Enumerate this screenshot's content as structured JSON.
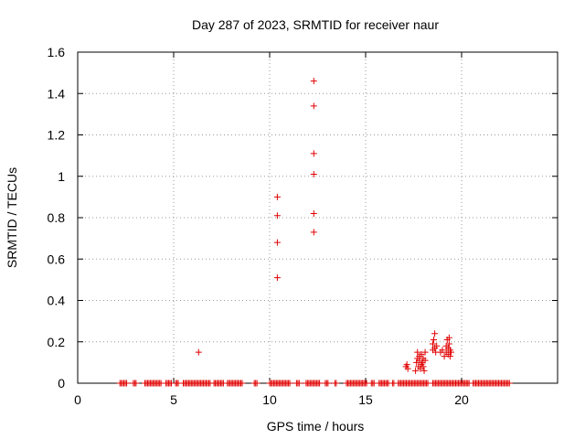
{
  "chart_data": {
    "type": "scatter",
    "title": "Day 287 of 2023, SRMTID for receiver naur",
    "xlabel": "GPS time / hours",
    "ylabel": "SRMTID / TECUs",
    "xlim": [
      0,
      25
    ],
    "ylim": [
      0,
      1.6
    ],
    "xticks": [
      0,
      5,
      10,
      15,
      20
    ],
    "yticks": [
      0,
      0.2,
      0.4,
      0.6,
      0.8,
      1,
      1.2,
      1.4,
      1.6
    ],
    "xtick_labels": [
      "0",
      "5",
      "10",
      "15",
      "20"
    ],
    "ytick_labels": [
      "0",
      "0.2",
      "0.4",
      "0.6",
      "0.8",
      "1",
      "1.2",
      "1.4",
      "1.6"
    ],
    "grid": true,
    "marker": "+",
    "color": "#e00000",
    "series": [
      {
        "name": "SRMTID",
        "points": [
          [
            6.3,
            0.15
          ],
          [
            10.4,
            0.51
          ],
          [
            10.4,
            0.68
          ],
          [
            10.4,
            0.81
          ],
          [
            10.4,
            0.9
          ],
          [
            12.3,
            0.73
          ],
          [
            12.3,
            0.82
          ],
          [
            12.3,
            1.01
          ],
          [
            12.3,
            1.11
          ],
          [
            12.3,
            1.34
          ],
          [
            12.3,
            1.46
          ],
          [
            17.1,
            0.08
          ],
          [
            17.2,
            0.07
          ],
          [
            17.15,
            0.09
          ],
          [
            17.6,
            0.06
          ],
          [
            17.65,
            0.1
          ],
          [
            17.7,
            0.12
          ],
          [
            17.7,
            0.15
          ],
          [
            17.75,
            0.08
          ],
          [
            17.8,
            0.11
          ],
          [
            17.8,
            0.13
          ],
          [
            17.85,
            0.07
          ],
          [
            17.9,
            0.09
          ],
          [
            17.9,
            0.14
          ],
          [
            17.95,
            0.1
          ],
          [
            18.0,
            0.12
          ],
          [
            18.0,
            0.08
          ],
          [
            18.05,
            0.06
          ],
          [
            18.1,
            0.11
          ],
          [
            18.1,
            0.15
          ],
          [
            18.5,
            0.16
          ],
          [
            18.5,
            0.19
          ],
          [
            18.55,
            0.21
          ],
          [
            18.6,
            0.24
          ],
          [
            18.6,
            0.17
          ],
          [
            18.65,
            0.15
          ],
          [
            18.7,
            0.18
          ],
          [
            18.9,
            0.15
          ],
          [
            19.0,
            0.16
          ],
          [
            19.1,
            0.13
          ],
          [
            19.2,
            0.15
          ],
          [
            19.2,
            0.18
          ],
          [
            19.25,
            0.21
          ],
          [
            19.3,
            0.17
          ],
          [
            19.3,
            0.14
          ],
          [
            19.35,
            0.19
          ],
          [
            19.35,
            0.22
          ],
          [
            19.4,
            0.16
          ],
          [
            19.4,
            0.13
          ],
          [
            19.45,
            0.15
          ]
        ],
        "zero_band": [
          [
            2.2,
            2.6
          ],
          [
            2.9,
            3.1
          ],
          [
            3.5,
            4.4
          ],
          [
            4.6,
            4.9
          ],
          [
            5.1,
            5.3
          ],
          [
            5.5,
            6.9
          ],
          [
            7.1,
            7.6
          ],
          [
            7.8,
            8.6
          ],
          [
            9.2,
            9.4
          ],
          [
            10.0,
            11.1
          ],
          [
            11.4,
            11.6
          ],
          [
            11.9,
            12.6
          ],
          [
            12.9,
            13.1
          ],
          [
            13.4,
            13.5
          ],
          [
            14.0,
            15.1
          ],
          [
            15.3,
            15.5
          ],
          [
            15.7,
            16.2
          ],
          [
            16.4,
            16.5
          ],
          [
            16.7,
            18.3
          ],
          [
            18.5,
            20.4
          ],
          [
            20.6,
            22.5
          ]
        ]
      }
    ]
  }
}
